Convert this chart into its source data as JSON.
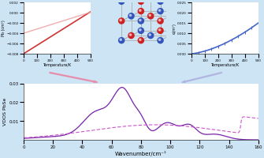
{
  "bg_color": "#cde4f5",
  "left_plot": {
    "xlabel": "Temperature/K",
    "ylabel": "Pb (cm³)",
    "xlim": [
      0,
      500
    ],
    "ylim": [
      -0.008,
      0.002
    ],
    "line1_color": "#cc3333",
    "line2_color": "#ee9999"
  },
  "right_plot": {
    "xlabel": "Temperature/K",
    "ylabel": "α(m³)",
    "xlim": [
      0,
      500
    ],
    "ylim": [
      0.0,
      0.025
    ],
    "line_color": "#4466cc"
  },
  "bottom_plot": {
    "xlabel": "Wavenumber/cm⁻¹",
    "ylabel": "VDOS PbSe",
    "xlim": [
      0,
      160
    ],
    "ylim": [
      0,
      0.03
    ],
    "yticks": [
      0.01,
      0.02,
      0.03
    ],
    "line1_color": "#7722aa",
    "line2_color": "#cc55cc"
  },
  "arrow1_color": "#ee7799",
  "arrow2_color": "#aaaadd",
  "blue_atom_color": "#3355bb",
  "red_atom_color": "#cc2222",
  "bond_color": "#aaaaaa"
}
